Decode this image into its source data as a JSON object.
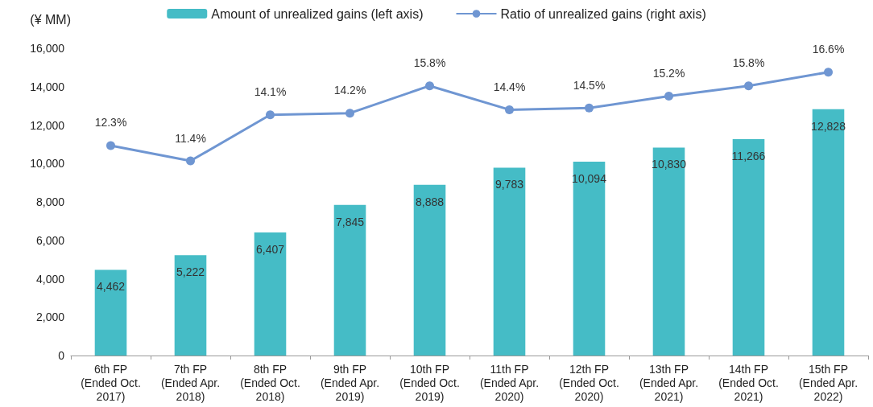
{
  "chart_data": {
    "type": "bar",
    "ylabel": "(¥ MM)",
    "categories": [
      "6th FP\n(Ended Oct.\n2017)",
      "7th FP\n(Ended Apr.\n2018)",
      "8th FP\n(Ended Oct.\n2018)",
      "9th FP\n(Ended Apr.\n2019)",
      "10th FP\n(Ended Oct.\n2019)",
      "11th FP\n(Ended Apr.\n2020)",
      "12th FP\n(Ended Oct.\n2020)",
      "13th FP\n(Ended Apr.\n2021)",
      "14th FP\n(Ended Oct.\n2021)",
      "15th FP\n(Ended Apr.\n2022)"
    ],
    "series": [
      {
        "name": "Amount of unrealized gains (left axis)",
        "color": "#45bcc6",
        "values": [
          4462,
          5222,
          6407,
          7845,
          8888,
          9783,
          10094,
          10830,
          11266,
          12828
        ],
        "value_labels": [
          "4,462",
          "5,222",
          "6,407",
          "7,845",
          "8,888",
          "9,783",
          "10,094",
          "10,830",
          "11,266",
          "12,828"
        ]
      },
      {
        "name": "Ratio of unrealized gains (right axis)",
        "type": "line",
        "axis": "y2",
        "color": "#6f96d2",
        "values": [
          12.3,
          11.4,
          14.1,
          14.2,
          15.8,
          14.4,
          14.5,
          15.2,
          15.8,
          16.6
        ],
        "value_labels": [
          "12.3%",
          "11.4%",
          "14.1%",
          "14.2%",
          "15.8%",
          "14.4%",
          "14.5%",
          "15.2%",
          "15.8%",
          "16.6%"
        ]
      }
    ],
    "ylim": [
      0,
      16000
    ],
    "yticks": [
      0,
      {
        "value": 2000,
        "label": "2,000"
      },
      {
        "value": 4000,
        "label": "4,000"
      },
      {
        "value": 6000,
        "label": "6,000"
      },
      {
        "value": 8000,
        "label": "8,000"
      },
      {
        "value": 10000,
        "label": "10,000"
      },
      {
        "value": 12000,
        "label": "12,000"
      },
      {
        "value": 14000,
        "label": "14,000"
      },
      {
        "value": 16000,
        "label": "16,000"
      }
    ],
    "legend": "top",
    "marker": "circle",
    "grid": false
  }
}
